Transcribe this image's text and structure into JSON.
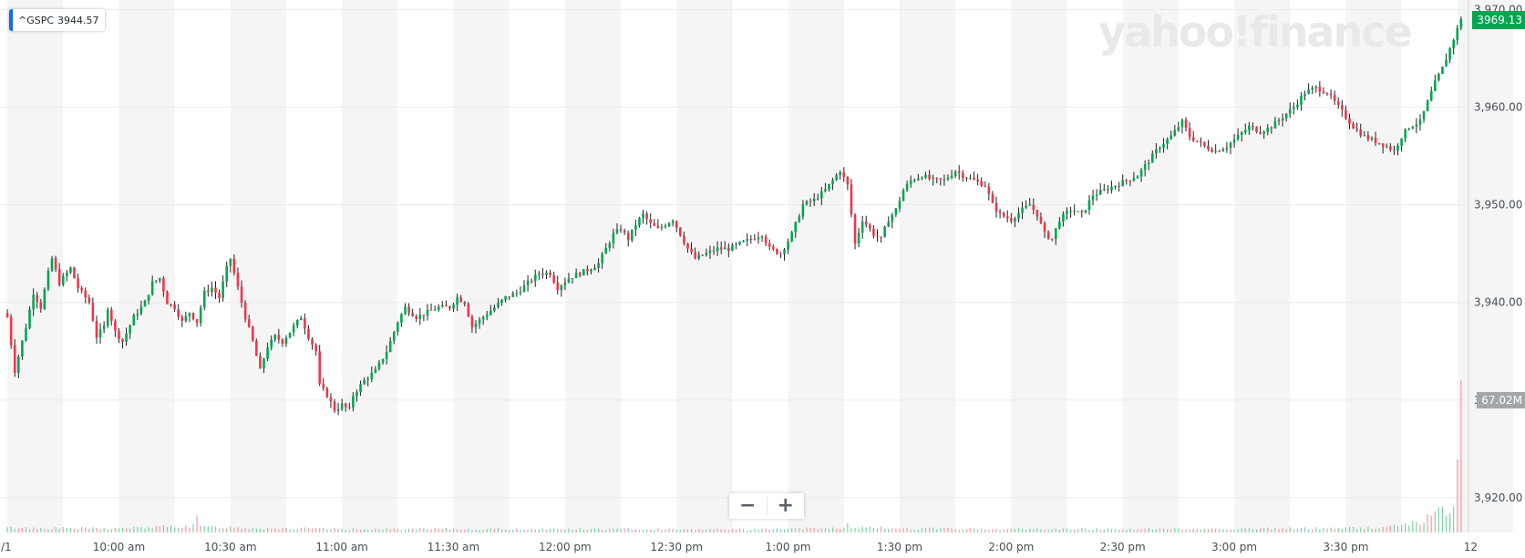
{
  "ticker": {
    "symbol": "^GSPC",
    "value": "3944.57",
    "accent": "#0f69ff"
  },
  "last_price": {
    "label": "3969.13",
    "color": "#00a651"
  },
  "last_volume": {
    "label": "67.02M"
  },
  "watermark": "yahoo!finance",
  "zoom": {
    "minus": "−",
    "plus": "+"
  },
  "colors": {
    "up": "#00a651",
    "down": "#f0364a",
    "band": "#f5f5f5",
    "grid": "#ebebeb",
    "wick": "#222222"
  },
  "chart_data": {
    "type": "candlestick",
    "y_ticks": [
      "3,970.00",
      "3,960.00",
      "3,950.00",
      "3,940.00",
      "3,930.00",
      "3,920.00"
    ],
    "y_tick_values": [
      3970,
      3960,
      3950,
      3940,
      3930,
      3920
    ],
    "ylim": [
      3917.0,
      3970.6
    ],
    "x_ticks": [
      "/1",
      "10:00 am",
      "10:30 am",
      "11:00 am",
      "11:30 am",
      "12:00 pm",
      "12:30 pm",
      "1:00 pm",
      "1:30 pm",
      "2:00 pm",
      "2:30 pm",
      "3:00 pm",
      "3:30 pm",
      "12"
    ],
    "x_tick_minutes": [
      -1,
      30,
      60,
      90,
      120,
      150,
      180,
      210,
      240,
      270,
      300,
      330,
      360,
      391
    ],
    "xlim_minutes": [
      -1,
      393
    ],
    "grid": true,
    "alternating_bands": true,
    "close_points": [
      [
        0,
        3938.5
      ],
      [
        2,
        3933.0
      ],
      [
        5,
        3937.5
      ],
      [
        7,
        3941.0
      ],
      [
        9,
        3939.5
      ],
      [
        11,
        3943.0
      ],
      [
        12,
        3944.5
      ],
      [
        14,
        3942.0
      ],
      [
        17,
        3943.5
      ],
      [
        19,
        3941.5
      ],
      [
        22,
        3940.0
      ],
      [
        24,
        3936.5
      ],
      [
        26,
        3937.5
      ],
      [
        27,
        3939.5
      ],
      [
        29,
        3937.0
      ],
      [
        31,
        3936.0
      ],
      [
        34,
        3938.5
      ],
      [
        37,
        3940.0
      ],
      [
        39,
        3942.0
      ],
      [
        41,
        3942.5
      ],
      [
        43,
        3940.0
      ],
      [
        45,
        3939.5
      ],
      [
        47,
        3938.0
      ],
      [
        49,
        3939.0
      ],
      [
        51,
        3938.0
      ],
      [
        53,
        3941.0
      ],
      [
        55,
        3941.5
      ],
      [
        57,
        3940.5
      ],
      [
        59,
        3943.5
      ],
      [
        60,
        3944.5
      ],
      [
        62,
        3941.5
      ],
      [
        64,
        3938.5
      ],
      [
        66,
        3936.0
      ],
      [
        68,
        3933.0
      ],
      [
        70,
        3935.5
      ],
      [
        72,
        3936.5
      ],
      [
        74,
        3936.0
      ],
      [
        76,
        3937.0
      ],
      [
        79,
        3938.5
      ],
      [
        81,
        3936.5
      ],
      [
        83,
        3935.0
      ],
      [
        84,
        3931.5
      ],
      [
        86,
        3930.5
      ],
      [
        88,
        3929.0
      ],
      [
        90,
        3929.5
      ],
      [
        92,
        3929.0
      ],
      [
        93,
        3930.5
      ],
      [
        96,
        3932.0
      ],
      [
        99,
        3933.0
      ],
      [
        102,
        3935.0
      ],
      [
        105,
        3938.0
      ],
      [
        107,
        3939.5
      ],
      [
        110,
        3938.5
      ],
      [
        113,
        3939.0
      ],
      [
        116,
        3939.5
      ],
      [
        119,
        3939.5
      ],
      [
        121,
        3940.5
      ],
      [
        123,
        3940.0
      ],
      [
        125,
        3937.5
      ],
      [
        128,
        3938.5
      ],
      [
        131,
        3939.5
      ],
      [
        134,
        3940.5
      ],
      [
        137,
        3941.0
      ],
      [
        140,
        3942.0
      ],
      [
        143,
        3943.0
      ],
      [
        146,
        3943.0
      ],
      [
        148,
        3941.5
      ],
      [
        151,
        3942.5
      ],
      [
        154,
        3943.0
      ],
      [
        157,
        3943.5
      ],
      [
        159,
        3944.0
      ],
      [
        161,
        3945.5
      ],
      [
        163,
        3947.0
      ],
      [
        165,
        3947.5
      ],
      [
        167,
        3946.5
      ],
      [
        169,
        3948.0
      ],
      [
        171,
        3949.0
      ],
      [
        173,
        3948.0
      ],
      [
        175,
        3947.5
      ],
      [
        177,
        3948.0
      ],
      [
        179,
        3948.5
      ],
      [
        181,
        3947.0
      ],
      [
        183,
        3945.5
      ],
      [
        185,
        3944.5
      ],
      [
        188,
        3945.0
      ],
      [
        191,
        3945.5
      ],
      [
        194,
        3945.5
      ],
      [
        197,
        3946.0
      ],
      [
        200,
        3946.5
      ],
      [
        203,
        3947.0
      ],
      [
        205,
        3945.5
      ],
      [
        208,
        3945.0
      ],
      [
        211,
        3947.0
      ],
      [
        214,
        3950.0
      ],
      [
        217,
        3950.5
      ],
      [
        220,
        3951.5
      ],
      [
        222,
        3952.5
      ],
      [
        224,
        3953.5
      ],
      [
        226,
        3952.0
      ],
      [
        228,
        3946.0
      ],
      [
        230,
        3948.5
      ],
      [
        233,
        3947.0
      ],
      [
        235,
        3946.5
      ],
      [
        237,
        3948.5
      ],
      [
        239,
        3949.5
      ],
      [
        241,
        3951.5
      ],
      [
        243,
        3952.5
      ],
      [
        246,
        3953.0
      ],
      [
        249,
        3952.5
      ],
      [
        252,
        3952.5
      ],
      [
        255,
        3953.5
      ],
      [
        257,
        3953.0
      ],
      [
        260,
        3952.5
      ],
      [
        263,
        3952.0
      ],
      [
        265,
        3950.0
      ],
      [
        267,
        3949.0
      ],
      [
        270,
        3948.5
      ],
      [
        273,
        3949.5
      ],
      [
        275,
        3950.0
      ],
      [
        277,
        3949.0
      ],
      [
        279,
        3947.0
      ],
      [
        281,
        3946.5
      ],
      [
        283,
        3948.5
      ],
      [
        286,
        3949.5
      ],
      [
        289,
        3949.0
      ],
      [
        292,
        3951.0
      ],
      [
        295,
        3951.5
      ],
      [
        298,
        3952.0
      ],
      [
        301,
        3952.5
      ],
      [
        304,
        3953.0
      ],
      [
        306,
        3954.0
      ],
      [
        308,
        3955.0
      ],
      [
        310,
        3956.0
      ],
      [
        313,
        3957.0
      ],
      [
        316,
        3958.5
      ],
      [
        318,
        3957.0
      ],
      [
        320,
        3956.5
      ],
      [
        322,
        3956.0
      ],
      [
        325,
        3955.5
      ],
      [
        328,
        3956.0
      ],
      [
        331,
        3957.0
      ],
      [
        334,
        3958.0
      ],
      [
        337,
        3957.5
      ],
      [
        340,
        3958.0
      ],
      [
        343,
        3959.0
      ],
      [
        346,
        3960.0
      ],
      [
        349,
        3961.5
      ],
      [
        352,
        3962.0
      ],
      [
        355,
        3961.5
      ],
      [
        357,
        3960.5
      ],
      [
        359,
        3959.5
      ],
      [
        362,
        3958.0
      ],
      [
        365,
        3957.0
      ],
      [
        368,
        3956.5
      ],
      [
        371,
        3956.0
      ],
      [
        373,
        3955.5
      ],
      [
        375,
        3957.0
      ],
      [
        377,
        3958.0
      ],
      [
        380,
        3958.5
      ],
      [
        382,
        3960.5
      ],
      [
        384,
        3962.5
      ],
      [
        386,
        3964.0
      ],
      [
        388,
        3966.0
      ],
      [
        390,
        3968.0
      ],
      [
        391,
        3969.13
      ]
    ],
    "volume_million_shares": [
      [
        0,
        2.5
      ],
      [
        30,
        2.2
      ],
      [
        50,
        3.6
      ],
      [
        51,
        10.0
      ],
      [
        52,
        3.0
      ],
      [
        90,
        1.8
      ],
      [
        150,
        1.9
      ],
      [
        200,
        1.7
      ],
      [
        225,
        2.4
      ],
      [
        226,
        4.0
      ],
      [
        227,
        2.6
      ],
      [
        260,
        1.8
      ],
      [
        300,
        1.9
      ],
      [
        340,
        2.1
      ],
      [
        370,
        2.6
      ],
      [
        380,
        6.0
      ],
      [
        383,
        9.0
      ],
      [
        386,
        11.0
      ],
      [
        388,
        12.5
      ],
      [
        389,
        14.0
      ],
      [
        391,
        67.02
      ]
    ],
    "volume_scale_max": 67.02
  }
}
